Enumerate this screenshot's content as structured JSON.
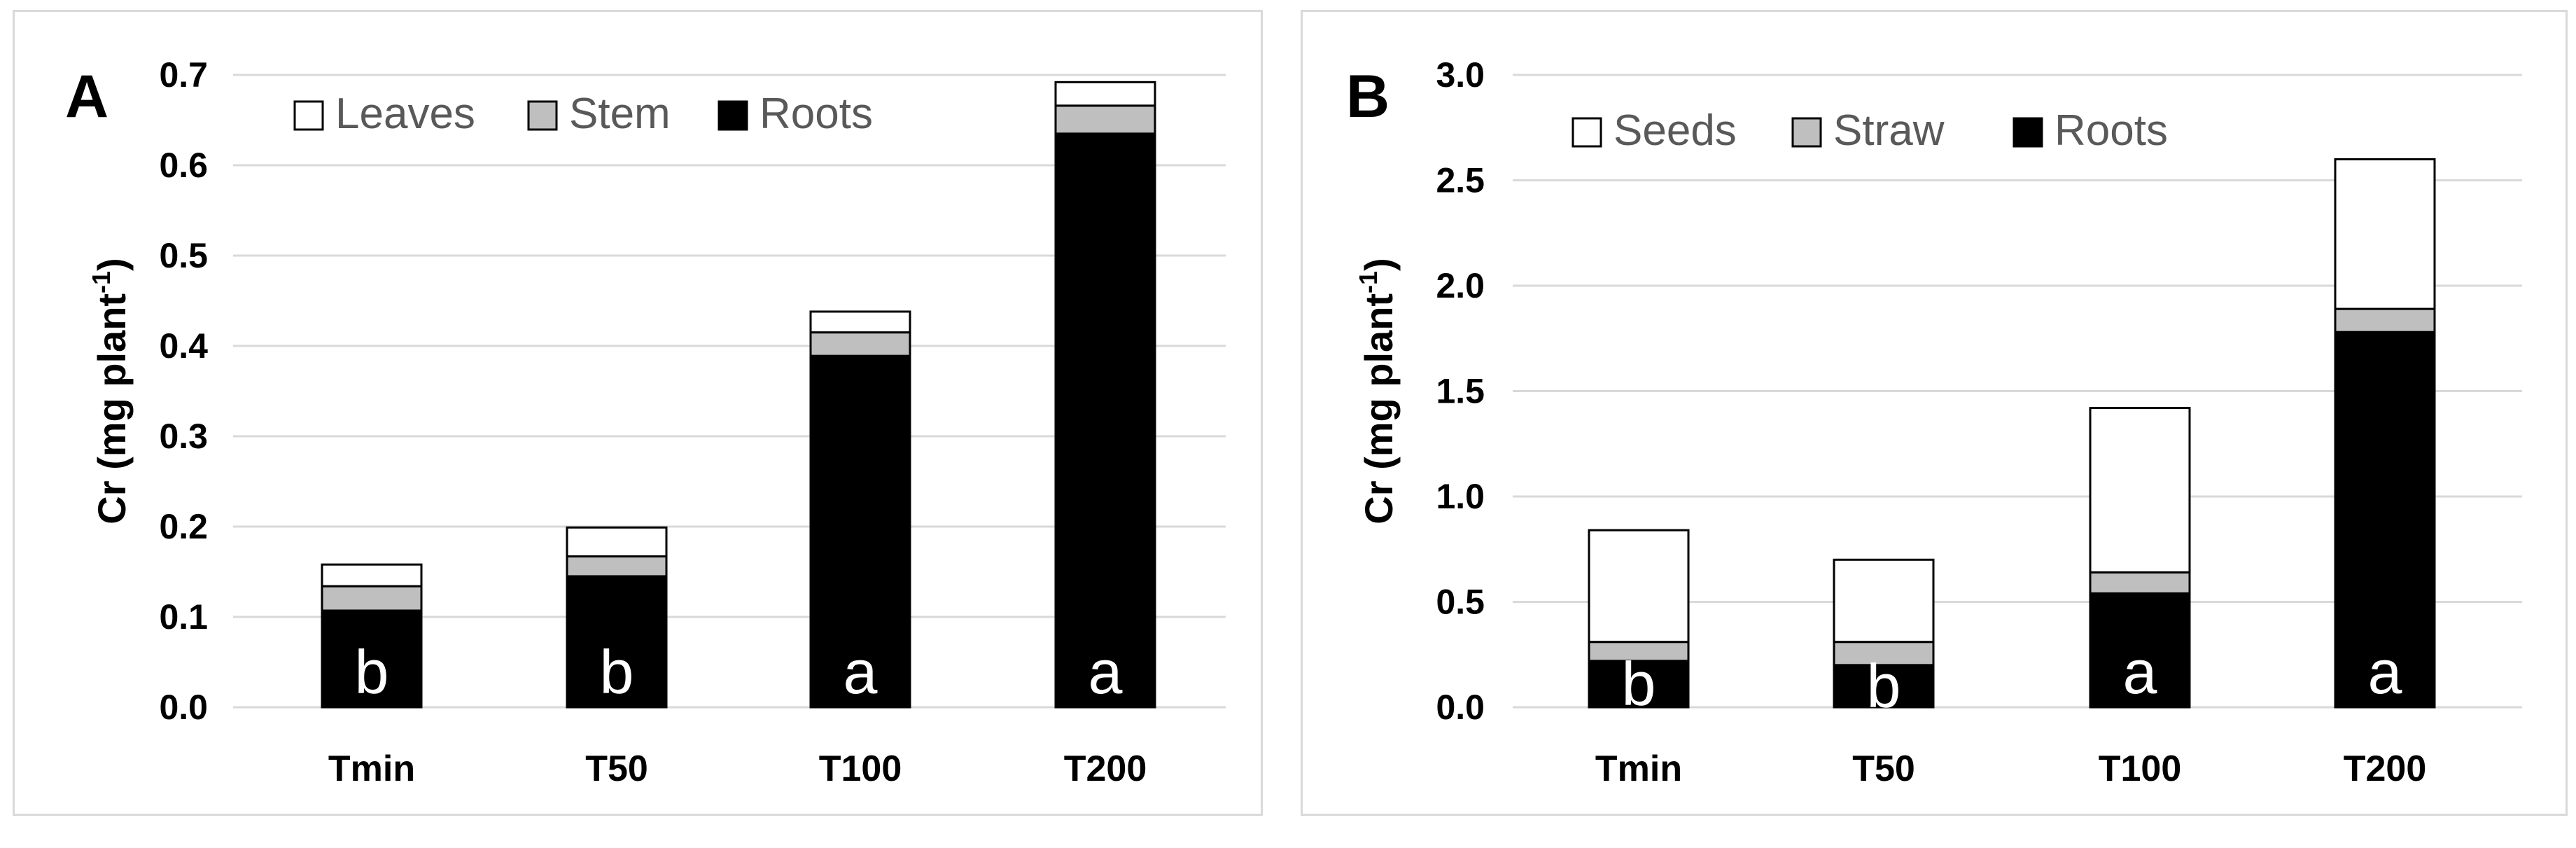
{
  "chart_data": [
    {
      "type": "bar",
      "stacked": true,
      "panel_label": "A",
      "categories": [
        "Tmin",
        "T50",
        "T100",
        "T200"
      ],
      "series": [
        {
          "name": "Roots",
          "color": "#000000",
          "values": [
            0.107,
            0.145,
            0.389,
            0.635
          ]
        },
        {
          "name": "Stem",
          "color": "#bfbfbf",
          "values": [
            0.027,
            0.022,
            0.026,
            0.031
          ]
        },
        {
          "name": "Leaves",
          "color": "#ffffff",
          "values": [
            0.024,
            0.032,
            0.023,
            0.026
          ]
        }
      ],
      "significance_labels": [
        "b",
        "b",
        "a",
        "a"
      ],
      "ylabel_main": "Cr (mg plant",
      "ylabel_sup": "-1",
      "ylabel_close": ")",
      "ylim": [
        0,
        0.7
      ],
      "yticks": [
        "0.0",
        "0.1",
        "0.2",
        "0.3",
        "0.4",
        "0.5",
        "0.6",
        "0.7"
      ],
      "legend": [
        "Leaves",
        "Stem",
        "Roots"
      ],
      "legend_position": "top-left",
      "grid": true
    },
    {
      "type": "bar",
      "stacked": true,
      "panel_label": "B",
      "categories": [
        "Tmin",
        "T50",
        "T100",
        "T200"
      ],
      "series": [
        {
          "name": "Roots",
          "color": "#000000",
          "values": [
            0.22,
            0.2,
            0.54,
            1.78
          ]
        },
        {
          "name": "Straw",
          "color": "#bfbfbf",
          "values": [
            0.09,
            0.11,
            0.1,
            0.11
          ]
        },
        {
          "name": "Seeds",
          "color": "#ffffff",
          "values": [
            0.53,
            0.39,
            0.78,
            0.71
          ]
        }
      ],
      "significance_labels": [
        "b",
        "b",
        "a",
        "a"
      ],
      "ylabel_main": "Cr (mg plant",
      "ylabel_sup": "-1",
      "ylabel_close": ")",
      "ylim": [
        0,
        3.0
      ],
      "yticks": [
        "0.0",
        "0.5",
        "1.0",
        "1.5",
        "2.0",
        "2.5",
        "3.0"
      ],
      "legend": [
        "Seeds",
        "Straw",
        "Roots"
      ],
      "legend_position": "top-left",
      "grid": true
    }
  ]
}
